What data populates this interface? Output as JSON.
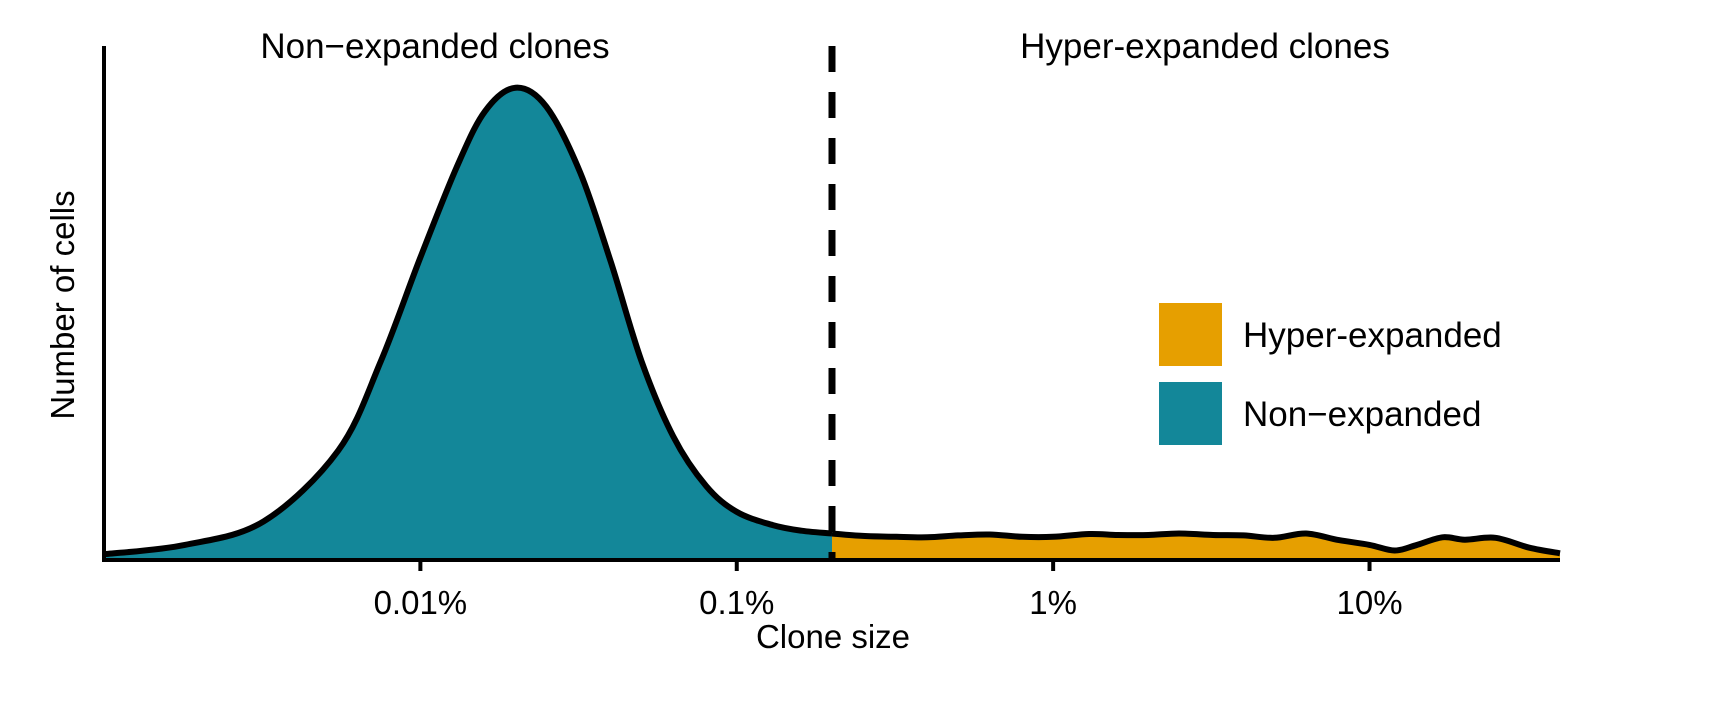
{
  "chart_data": {
    "type": "area",
    "xlabel": "Clone size",
    "ylabel": "Number of cells",
    "x_scale": "log",
    "x_ticks": [
      {
        "value": 0.0001,
        "label": "0.01%"
      },
      {
        "value": 0.001,
        "label": "0.1%"
      },
      {
        "value": 0.01,
        "label": "1%"
      },
      {
        "value": 0.1,
        "label": "10%"
      }
    ],
    "xlim": [
      1e-05,
      0.4
    ],
    "ylim": [
      0,
      1.08
    ],
    "threshold": 0.002,
    "annotations": {
      "left": "Non−expanded clones",
      "right": "Hyper-expanded clones"
    },
    "legend": {
      "position": "right",
      "entries": [
        {
          "label": "Hyper-expanded",
          "color": "#E69F00"
        },
        {
          "label": "Non−expanded",
          "color": "#138799"
        }
      ]
    },
    "series": [
      {
        "name": "Non−expanded",
        "color": "#138799",
        "points": [
          [
            1e-05,
            0.01
          ],
          [
            1.8e-05,
            0.03
          ],
          [
            3.2e-05,
            0.08
          ],
          [
            5.5e-05,
            0.23
          ],
          [
            7.5e-05,
            0.42
          ],
          [
            0.0001,
            0.64
          ],
          [
            0.00013,
            0.83
          ],
          [
            0.00016,
            0.95
          ],
          [
            0.0002,
            1.0
          ],
          [
            0.00025,
            0.96
          ],
          [
            0.00032,
            0.82
          ],
          [
            0.0004,
            0.63
          ],
          [
            0.0005,
            0.42
          ],
          [
            0.00063,
            0.26
          ],
          [
            0.0008,
            0.155
          ],
          [
            0.001,
            0.1
          ],
          [
            0.0013,
            0.072
          ],
          [
            0.0016,
            0.06
          ],
          [
            0.002,
            0.054
          ]
        ]
      },
      {
        "name": "Hyper-expanded",
        "color": "#E69F00",
        "points": [
          [
            0.002,
            0.054
          ],
          [
            0.0025,
            0.049
          ],
          [
            0.0032,
            0.047
          ],
          [
            0.004,
            0.046
          ],
          [
            0.005,
            0.05
          ],
          [
            0.0063,
            0.052
          ],
          [
            0.008,
            0.047
          ],
          [
            0.01,
            0.047
          ],
          [
            0.013,
            0.053
          ],
          [
            0.016,
            0.051
          ],
          [
            0.02,
            0.051
          ],
          [
            0.025,
            0.054
          ],
          [
            0.032,
            0.051
          ],
          [
            0.04,
            0.05
          ],
          [
            0.05,
            0.045
          ],
          [
            0.063,
            0.054
          ],
          [
            0.08,
            0.04
          ],
          [
            0.1,
            0.03
          ],
          [
            0.12,
            0.018
          ],
          [
            0.14,
            0.029
          ],
          [
            0.17,
            0.046
          ],
          [
            0.2,
            0.041
          ],
          [
            0.25,
            0.045
          ],
          [
            0.32,
            0.024
          ],
          [
            0.4,
            0.012
          ]
        ]
      }
    ]
  }
}
